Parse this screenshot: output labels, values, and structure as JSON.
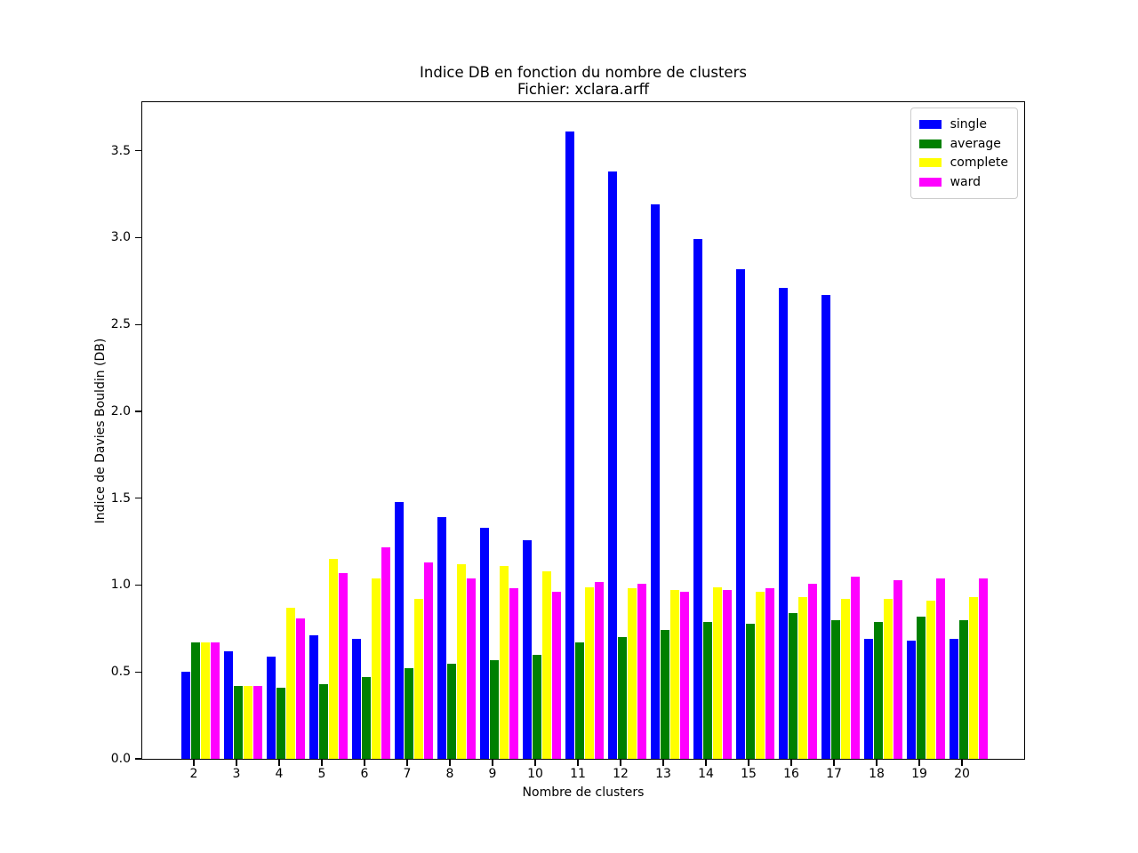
{
  "title": {
    "line1": "Indice DB en fonction du nombre de clusters",
    "line2": "Fichier: xclara.arff"
  },
  "chart_data": {
    "type": "bar",
    "title": "Indice DB en fonction du nombre de clusters",
    "subtitle": "Fichier: xclara.arff",
    "xlabel": "Nombre de clusters",
    "ylabel": "Indice de Davies Bouldin (DB)",
    "categories": [
      2,
      3,
      4,
      5,
      6,
      7,
      8,
      9,
      10,
      11,
      12,
      13,
      14,
      15,
      16,
      17,
      18,
      19,
      20
    ],
    "series": [
      {
        "name": "single",
        "color": "#0000ff",
        "values": [
          0.5,
          0.62,
          0.59,
          0.71,
          0.69,
          1.48,
          1.39,
          1.33,
          1.26,
          3.61,
          3.38,
          3.19,
          2.99,
          2.82,
          2.71,
          2.67,
          0.69,
          0.68,
          0.69
        ]
      },
      {
        "name": "average",
        "color": "#008000",
        "values": [
          0.67,
          0.42,
          0.41,
          0.43,
          0.47,
          0.52,
          0.55,
          0.57,
          0.6,
          0.67,
          0.7,
          0.74,
          0.79,
          0.78,
          0.84,
          0.8,
          0.79,
          0.82,
          0.8
        ]
      },
      {
        "name": "complete",
        "color": "#ffff00",
        "values": [
          0.67,
          0.42,
          0.87,
          1.15,
          1.04,
          0.92,
          1.12,
          1.11,
          1.08,
          0.99,
          0.98,
          0.97,
          0.99,
          0.96,
          0.93,
          0.92,
          0.92,
          0.91,
          0.93
        ]
      },
      {
        "name": "ward",
        "color": "#ff00ff",
        "values": [
          0.67,
          0.42,
          0.81,
          1.07,
          1.22,
          1.13,
          1.04,
          0.98,
          0.96,
          1.02,
          1.01,
          0.96,
          0.97,
          0.98,
          1.01,
          1.05,
          1.03,
          1.04,
          1.04
        ]
      }
    ],
    "ylim": [
      0,
      3.78
    ],
    "ytick_labels": [
      "0.0",
      "0.5",
      "1.0",
      "1.5",
      "2.0",
      "2.5",
      "3.0",
      "3.5"
    ],
    "grid": false,
    "legend_position": "upper right",
    "background": "#ffffff",
    "bar_colors": {
      "single": "#0000ff",
      "average": "#008000",
      "complete": "#ffff00",
      "ward": "#ff00ff"
    }
  }
}
